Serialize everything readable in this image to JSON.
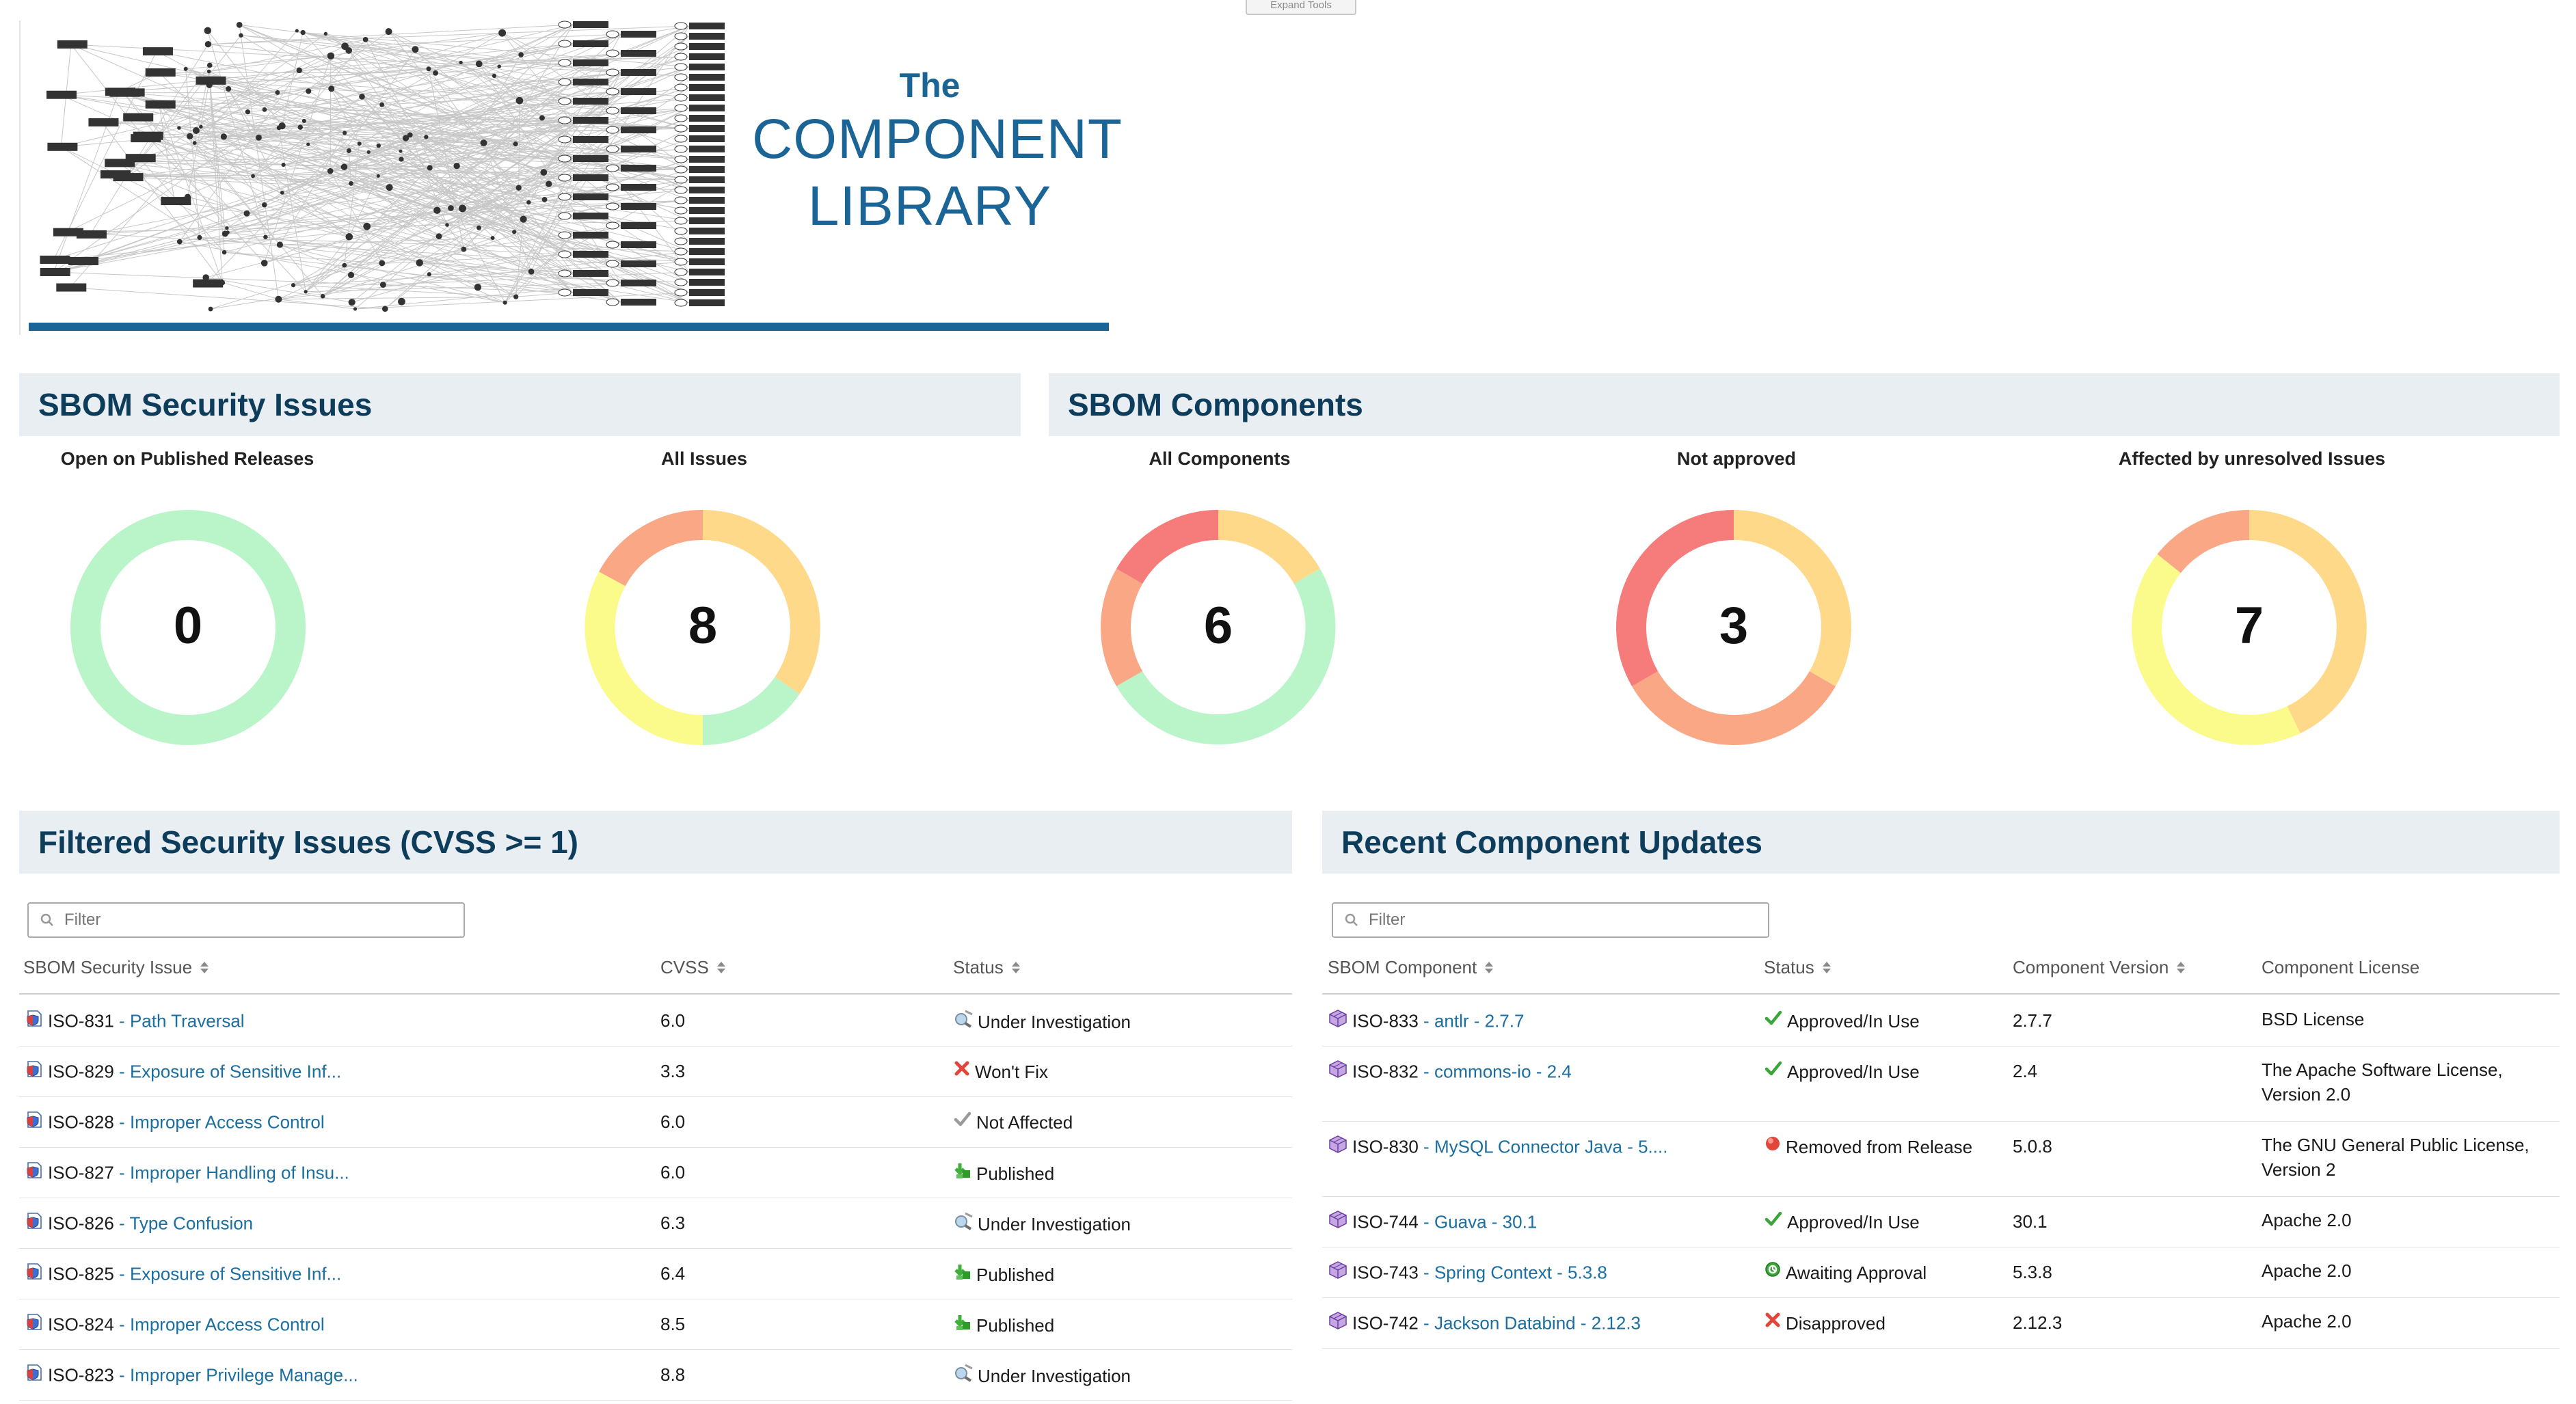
{
  "expand_tools": "Expand Tools",
  "banner": {
    "the": "The",
    "line1": "COMPONENT",
    "line2": "LIBRARY"
  },
  "security_panel": {
    "title": "SBOM Security Issues",
    "charts": [
      {
        "label": "Open on Published Releases",
        "value": "0"
      },
      {
        "label": "All Issues",
        "value": "8"
      }
    ]
  },
  "components_panel": {
    "title": "SBOM Components",
    "charts": [
      {
        "label": "All Components",
        "value": "6"
      },
      {
        "label": "Not approved",
        "value": "3"
      },
      {
        "label": "Affected by unresolved Issues",
        "value": "7"
      }
    ]
  },
  "colors": {
    "green": "#b9f5c9",
    "yellow": "#fbfb8c",
    "amber": "#ffd98a",
    "orange": "#f9a784",
    "red": "#f67b7b",
    "link": "#1a6ea0",
    "header_text": "#0e3d5c"
  },
  "issues": {
    "title": "Filtered Security Issues (CVSS >= 1)",
    "filter_placeholder": "Filter",
    "headers": {
      "issue": "SBOM Security Issue",
      "cvss": "CVSS",
      "status": "Status"
    },
    "rows": [
      {
        "id": "ISO-831",
        "name": "Path Traversal",
        "cvss": "6.0",
        "status": "Under Investigation",
        "status_icon": "investigation"
      },
      {
        "id": "ISO-829",
        "name": "Exposure of Sensitive Inf...",
        "cvss": "3.3",
        "status": "Won't Fix",
        "status_icon": "wontfix"
      },
      {
        "id": "ISO-828",
        "name": "Improper Access Control",
        "cvss": "6.0",
        "status": "Not Affected",
        "status_icon": "notaffected"
      },
      {
        "id": "ISO-827",
        "name": "Improper Handling of Insu...",
        "cvss": "6.0",
        "status": "Published",
        "status_icon": "published"
      },
      {
        "id": "ISO-826",
        "name": "Type Confusion",
        "cvss": "6.3",
        "status": "Under Investigation",
        "status_icon": "investigation"
      },
      {
        "id": "ISO-825",
        "name": "Exposure of Sensitive Inf...",
        "cvss": "6.4",
        "status": "Published",
        "status_icon": "published"
      },
      {
        "id": "ISO-824",
        "name": "Improper Access Control",
        "cvss": "8.5",
        "status": "Published",
        "status_icon": "published"
      },
      {
        "id": "ISO-823",
        "name": "Improper Privilege Manage...",
        "cvss": "8.8",
        "status": "Under Investigation",
        "status_icon": "investigation"
      }
    ]
  },
  "components": {
    "title": "Recent Component Updates",
    "filter_placeholder": "Filter",
    "headers": {
      "component": "SBOM Component",
      "status": "Status",
      "version": "Component Version",
      "license": "Component License"
    },
    "rows": [
      {
        "id": "ISO-833",
        "name": "antlr - 2.7.7",
        "status": "Approved/In Use",
        "status_icon": "approved",
        "version": "2.7.7",
        "license": "BSD License",
        "license2": ""
      },
      {
        "id": "ISO-832",
        "name": "commons-io - 2.4",
        "status": "Approved/In Use",
        "status_icon": "approved",
        "version": "2.4",
        "license": "The Apache Software License,",
        "license2": "Version 2.0"
      },
      {
        "id": "ISO-830",
        "name": "MySQL Connector Java - 5....",
        "status": "Removed from Release",
        "status_icon": "removed",
        "version": "5.0.8",
        "license": "The GNU General Public License,",
        "license2": "Version 2"
      },
      {
        "id": "ISO-744",
        "name": "Guava - 30.1",
        "status": "Approved/In Use",
        "status_icon": "approved",
        "version": "30.1",
        "license": "Apache 2.0",
        "license2": ""
      },
      {
        "id": "ISO-743",
        "name": "Spring Context - 5.3.8",
        "status": "Awaiting Approval",
        "status_icon": "awaiting",
        "version": "5.3.8",
        "license": "Apache 2.0",
        "license2": ""
      },
      {
        "id": "ISO-742",
        "name": "Jackson Databind - 2.12.3",
        "status": "Disapproved",
        "status_icon": "disapproved",
        "version": "2.12.3",
        "license": "Apache 2.0",
        "license2": ""
      }
    ]
  }
}
